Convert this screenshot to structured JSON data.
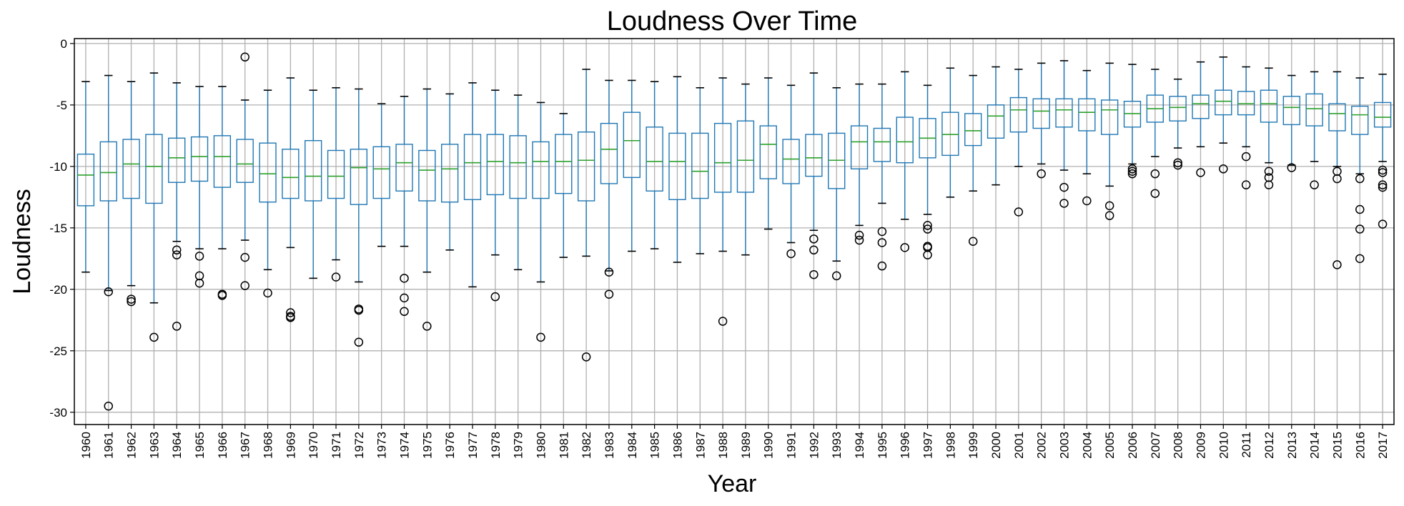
{
  "chart_data": {
    "type": "box",
    "title": "Loudness Over Time",
    "xlabel": "Year",
    "ylabel": "Loudness",
    "ylim": [
      -31,
      0.4
    ],
    "yticks": [
      0,
      -5,
      -10,
      -15,
      -20,
      -25,
      -30
    ],
    "grid": true,
    "colors": {
      "box": "#1f77b4",
      "median": "#2ca02c",
      "grid": "#b0b0b0",
      "flier": "#000000"
    },
    "categories": [
      "1960",
      "1961",
      "1962",
      "1963",
      "1964",
      "1965",
      "1966",
      "1967",
      "1968",
      "1969",
      "1970",
      "1971",
      "1972",
      "1973",
      "1974",
      "1975",
      "1976",
      "1977",
      "1978",
      "1979",
      "1980",
      "1981",
      "1982",
      "1983",
      "1984",
      "1985",
      "1986",
      "1987",
      "1988",
      "1989",
      "1990",
      "1991",
      "1992",
      "1993",
      "1994",
      "1995",
      "1996",
      "1997",
      "1998",
      "1999",
      "2000",
      "2001",
      "2002",
      "2003",
      "2004",
      "2005",
      "2006",
      "2007",
      "2008",
      "2009",
      "2010",
      "2011",
      "2012",
      "2013",
      "2014",
      "2015",
      "2016",
      "2017"
    ],
    "boxes": [
      {
        "whislo": -18.6,
        "q1": -13.2,
        "med": -10.7,
        "q3": -9.0,
        "whishi": -3.1,
        "fliers": []
      },
      {
        "whislo": -20.1,
        "q1": -12.8,
        "med": -10.5,
        "q3": -8.0,
        "whishi": -2.6,
        "fliers": [
          -20.2,
          -29.5
        ]
      },
      {
        "whislo": -19.7,
        "q1": -12.6,
        "med": -9.8,
        "q3": -7.8,
        "whishi": -3.1,
        "fliers": [
          -20.8,
          -21.0
        ]
      },
      {
        "whislo": -21.1,
        "q1": -13.0,
        "med": -10.0,
        "q3": -7.4,
        "whishi": -2.4,
        "fliers": [
          -23.9
        ]
      },
      {
        "whislo": -16.1,
        "q1": -11.3,
        "med": -9.3,
        "q3": -7.7,
        "whishi": -3.2,
        "fliers": [
          -16.8,
          -17.2,
          -23.0
        ]
      },
      {
        "whislo": -16.7,
        "q1": -11.2,
        "med": -9.2,
        "q3": -7.6,
        "whishi": -3.5,
        "fliers": [
          -17.3,
          -18.9,
          -19.5
        ]
      },
      {
        "whislo": -16.7,
        "q1": -11.7,
        "med": -9.2,
        "q3": -7.5,
        "whishi": -3.5,
        "fliers": [
          -20.4,
          -20.5
        ]
      },
      {
        "whislo": -16.0,
        "q1": -11.3,
        "med": -9.8,
        "q3": -7.8,
        "whishi": -4.6,
        "fliers": [
          -1.1,
          -17.4,
          -19.7
        ]
      },
      {
        "whislo": -18.4,
        "q1": -12.9,
        "med": -10.6,
        "q3": -8.1,
        "whishi": -3.8,
        "fliers": [
          -20.3
        ]
      },
      {
        "whislo": -16.6,
        "q1": -12.6,
        "med": -10.9,
        "q3": -8.6,
        "whishi": -2.8,
        "fliers": [
          -21.9,
          -22.2,
          -22.3
        ]
      },
      {
        "whislo": -19.1,
        "q1": -12.8,
        "med": -10.8,
        "q3": -7.9,
        "whishi": -3.8,
        "fliers": []
      },
      {
        "whislo": -17.6,
        "q1": -12.6,
        "med": -10.8,
        "q3": -8.7,
        "whishi": -3.6,
        "fliers": [
          -19.0
        ]
      },
      {
        "whislo": -19.4,
        "q1": -13.1,
        "med": -10.1,
        "q3": -8.6,
        "whishi": -3.7,
        "fliers": [
          -21.6,
          -21.7,
          -24.3
        ]
      },
      {
        "whislo": -16.5,
        "q1": -12.6,
        "med": -10.2,
        "q3": -8.4,
        "whishi": -4.9,
        "fliers": []
      },
      {
        "whislo": -16.5,
        "q1": -12.0,
        "med": -9.7,
        "q3": -8.2,
        "whishi": -4.3,
        "fliers": [
          -19.1,
          -20.7,
          -21.8
        ]
      },
      {
        "whislo": -18.6,
        "q1": -12.8,
        "med": -10.3,
        "q3": -8.7,
        "whishi": -3.7,
        "fliers": [
          -23.0
        ]
      },
      {
        "whislo": -16.8,
        "q1": -12.9,
        "med": -10.2,
        "q3": -8.2,
        "whishi": -4.1,
        "fliers": []
      },
      {
        "whislo": -19.8,
        "q1": -12.7,
        "med": -9.7,
        "q3": -7.4,
        "whishi": -3.2,
        "fliers": []
      },
      {
        "whislo": -17.2,
        "q1": -12.3,
        "med": -9.6,
        "q3": -7.4,
        "whishi": -3.8,
        "fliers": [
          -20.6
        ]
      },
      {
        "whislo": -18.4,
        "q1": -12.6,
        "med": -9.7,
        "q3": -7.5,
        "whishi": -4.2,
        "fliers": []
      },
      {
        "whislo": -19.4,
        "q1": -12.6,
        "med": -9.6,
        "q3": -8.0,
        "whishi": -4.8,
        "fliers": [
          -23.9
        ]
      },
      {
        "whislo": -17.4,
        "q1": -12.2,
        "med": -9.6,
        "q3": -7.4,
        "whishi": -5.7,
        "fliers": []
      },
      {
        "whislo": -17.3,
        "q1": -12.8,
        "med": -9.5,
        "q3": -7.2,
        "whishi": -2.1,
        "fliers": [
          -25.5
        ]
      },
      {
        "whislo": -18.5,
        "q1": -11.4,
        "med": -8.6,
        "q3": -6.5,
        "whishi": -3.0,
        "fliers": [
          -18.6,
          -20.4
        ]
      },
      {
        "whislo": -16.9,
        "q1": -10.9,
        "med": -7.9,
        "q3": -5.6,
        "whishi": -3.0,
        "fliers": []
      },
      {
        "whislo": -16.7,
        "q1": -12.0,
        "med": -9.6,
        "q3": -6.8,
        "whishi": -3.1,
        "fliers": []
      },
      {
        "whislo": -17.8,
        "q1": -12.7,
        "med": -9.6,
        "q3": -7.3,
        "whishi": -2.7,
        "fliers": []
      },
      {
        "whislo": -17.1,
        "q1": -12.6,
        "med": -10.4,
        "q3": -7.3,
        "whishi": -3.6,
        "fliers": []
      },
      {
        "whislo": -16.9,
        "q1": -12.1,
        "med": -9.7,
        "q3": -6.5,
        "whishi": -2.8,
        "fliers": [
          -22.6
        ]
      },
      {
        "whislo": -17.2,
        "q1": -12.1,
        "med": -9.5,
        "q3": -6.3,
        "whishi": -3.3,
        "fliers": []
      },
      {
        "whislo": -15.1,
        "q1": -11.0,
        "med": -8.2,
        "q3": -6.7,
        "whishi": -2.8,
        "fliers": []
      },
      {
        "whislo": -16.2,
        "q1": -11.4,
        "med": -9.4,
        "q3": -7.8,
        "whishi": -3.4,
        "fliers": [
          -17.1
        ]
      },
      {
        "whislo": -15.2,
        "q1": -10.8,
        "med": -9.3,
        "q3": -7.4,
        "whishi": -2.4,
        "fliers": [
          -15.9,
          -16.8,
          -18.8
        ]
      },
      {
        "whislo": -17.7,
        "q1": -11.8,
        "med": -9.5,
        "q3": -7.3,
        "whishi": -3.6,
        "fliers": [
          -18.9
        ]
      },
      {
        "whislo": -14.8,
        "q1": -10.2,
        "med": -8.0,
        "q3": -6.7,
        "whishi": -3.3,
        "fliers": [
          -15.6,
          -16.0
        ]
      },
      {
        "whislo": -13.0,
        "q1": -9.6,
        "med": -8.0,
        "q3": -6.9,
        "whishi": -3.3,
        "fliers": [
          -15.3,
          -16.2,
          -18.1
        ]
      },
      {
        "whislo": -14.3,
        "q1": -9.7,
        "med": -8.0,
        "q3": -6.0,
        "whishi": -2.3,
        "fliers": [
          -16.6
        ]
      },
      {
        "whislo": -13.9,
        "q1": -9.3,
        "med": -7.7,
        "q3": -6.1,
        "whishi": -3.4,
        "fliers": [
          -14.8,
          -15.1,
          -16.5,
          -16.6,
          -17.2
        ]
      },
      {
        "whislo": -12.5,
        "q1": -9.1,
        "med": -7.4,
        "q3": -5.6,
        "whishi": -2.0,
        "fliers": []
      },
      {
        "whislo": -12.0,
        "q1": -8.3,
        "med": -7.1,
        "q3": -5.7,
        "whishi": -2.6,
        "fliers": [
          -16.1
        ]
      },
      {
        "whislo": -11.5,
        "q1": -7.7,
        "med": -5.9,
        "q3": -5.0,
        "whishi": -1.9,
        "fliers": []
      },
      {
        "whislo": -10.0,
        "q1": -7.2,
        "med": -5.4,
        "q3": -4.4,
        "whishi": -2.1,
        "fliers": [
          -13.7
        ]
      },
      {
        "whislo": -9.8,
        "q1": -6.9,
        "med": -5.5,
        "q3": -4.5,
        "whishi": -1.6,
        "fliers": [
          -10.6
        ]
      },
      {
        "whislo": -10.3,
        "q1": -6.8,
        "med": -5.4,
        "q3": -4.5,
        "whishi": -1.4,
        "fliers": [
          -11.7,
          -13.0
        ]
      },
      {
        "whislo": -10.6,
        "q1": -7.1,
        "med": -5.6,
        "q3": -4.5,
        "whishi": -2.2,
        "fliers": [
          -12.8
        ]
      },
      {
        "whislo": -11.6,
        "q1": -7.4,
        "med": -5.4,
        "q3": -4.6,
        "whishi": -1.6,
        "fliers": [
          -13.2,
          -14.0
        ]
      },
      {
        "whislo": -9.8,
        "q1": -6.8,
        "med": -5.7,
        "q3": -4.7,
        "whishi": -1.7,
        "fliers": [
          -10.2,
          -10.4,
          -10.6
        ]
      },
      {
        "whislo": -9.2,
        "q1": -6.4,
        "med": -5.3,
        "q3": -4.2,
        "whishi": -2.1,
        "fliers": [
          -10.6,
          -12.2
        ]
      },
      {
        "whislo": -8.5,
        "q1": -6.3,
        "med": -5.2,
        "q3": -4.3,
        "whishi": -2.9,
        "fliers": [
          -9.7,
          -9.9
        ]
      },
      {
        "whislo": -8.4,
        "q1": -6.1,
        "med": -4.9,
        "q3": -4.2,
        "whishi": -1.5,
        "fliers": [
          -10.5
        ]
      },
      {
        "whislo": -8.1,
        "q1": -5.8,
        "med": -4.7,
        "q3": -3.8,
        "whishi": -1.1,
        "fliers": [
          -10.2
        ]
      },
      {
        "whislo": -8.4,
        "q1": -5.8,
        "med": -4.9,
        "q3": -3.9,
        "whishi": -1.9,
        "fliers": [
          -9.2,
          -11.5
        ]
      },
      {
        "whislo": -9.7,
        "q1": -6.4,
        "med": -4.9,
        "q3": -3.8,
        "whishi": -2.0,
        "fliers": [
          -10.4,
          -10.9,
          -11.5
        ]
      },
      {
        "whislo": -9.9,
        "q1": -6.6,
        "med": -5.2,
        "q3": -4.3,
        "whishi": -2.6,
        "fliers": [
          -10.1
        ]
      },
      {
        "whislo": -9.6,
        "q1": -6.7,
        "med": -5.3,
        "q3": -4.1,
        "whishi": -2.3,
        "fliers": [
          -11.5
        ]
      },
      {
        "whislo": -10.0,
        "q1": -7.1,
        "med": -5.7,
        "q3": -4.9,
        "whishi": -2.3,
        "fliers": [
          -10.4,
          -11.0,
          -18.0
        ]
      },
      {
        "whislo": -10.6,
        "q1": -7.4,
        "med": -5.8,
        "q3": -5.1,
        "whishi": -2.8,
        "fliers": [
          -11.0,
          -13.5,
          -15.1,
          -17.5
        ]
      },
      {
        "whislo": -9.6,
        "q1": -6.8,
        "med": -6.0,
        "q3": -4.8,
        "whishi": -2.5,
        "fliers": [
          -10.3,
          -10.5,
          -11.5,
          -11.7,
          -14.7
        ]
      }
    ]
  }
}
